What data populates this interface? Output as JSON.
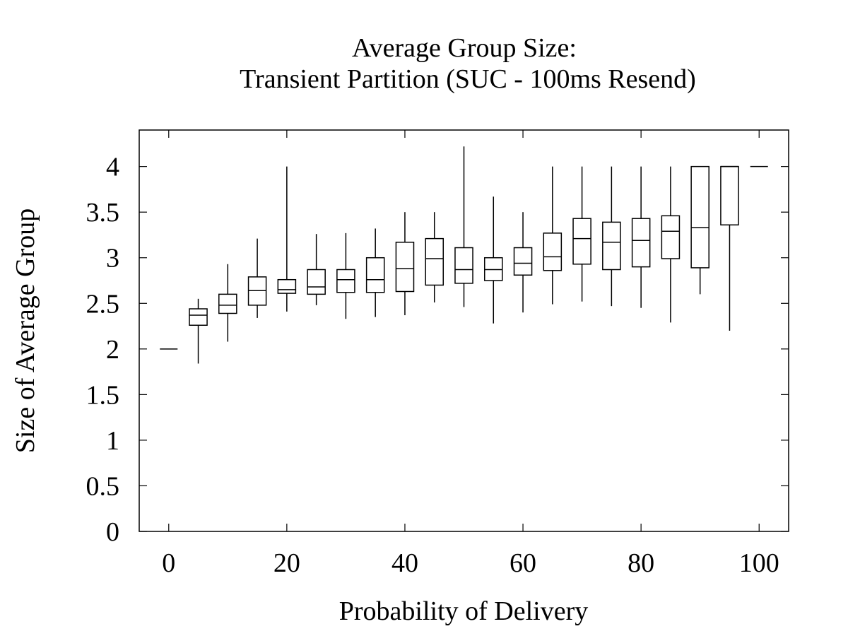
{
  "chart_data": {
    "type": "boxplot",
    "title": [
      "Average Group Size:",
      "Transient Partition (SUC - 100ms Resend)"
    ],
    "xlabel": "Probability of Delivery",
    "ylabel": "Size of Average Group",
    "xlim": [
      -5,
      105
    ],
    "ylim": [
      0,
      4.4
    ],
    "xticks": [
      0,
      20,
      40,
      60,
      80,
      100
    ],
    "xtick_labels": [
      "0",
      "20",
      "40",
      "60",
      "80",
      "100"
    ],
    "yticks": [
      0,
      0.5,
      1,
      1.5,
      2,
      2.5,
      3,
      3.5,
      4
    ],
    "ytick_labels": [
      "0",
      "0.5",
      "1",
      "1.5",
      "2",
      "2.5",
      "3",
      "3.5",
      "4"
    ],
    "grid": false,
    "box_width": 3,
    "boxes": [
      {
        "x": 0,
        "min": 2.0,
        "q1": 2.0,
        "median": 2.0,
        "q3": 2.0,
        "max": 2.0
      },
      {
        "x": 5,
        "min": 1.84,
        "q1": 2.26,
        "median": 2.37,
        "q3": 2.44,
        "max": 2.55
      },
      {
        "x": 10,
        "min": 2.08,
        "q1": 2.39,
        "median": 2.48,
        "q3": 2.6,
        "max": 2.93
      },
      {
        "x": 15,
        "min": 2.34,
        "q1": 2.48,
        "median": 2.64,
        "q3": 2.79,
        "max": 3.21
      },
      {
        "x": 20,
        "min": 2.41,
        "q1": 2.61,
        "median": 2.65,
        "q3": 2.76,
        "max": 4.0
      },
      {
        "x": 25,
        "min": 2.48,
        "q1": 2.6,
        "median": 2.68,
        "q3": 2.87,
        "max": 3.26
      },
      {
        "x": 30,
        "min": 2.33,
        "q1": 2.62,
        "median": 2.76,
        "q3": 2.87,
        "max": 3.27
      },
      {
        "x": 35,
        "min": 2.35,
        "q1": 2.62,
        "median": 2.76,
        "q3": 3.0,
        "max": 3.32
      },
      {
        "x": 40,
        "min": 2.37,
        "q1": 2.63,
        "median": 2.88,
        "q3": 3.17,
        "max": 3.5
      },
      {
        "x": 45,
        "min": 2.51,
        "q1": 2.7,
        "median": 2.99,
        "q3": 3.21,
        "max": 3.5
      },
      {
        "x": 50,
        "min": 2.46,
        "q1": 2.72,
        "median": 2.87,
        "q3": 3.11,
        "max": 4.22
      },
      {
        "x": 55,
        "min": 2.28,
        "q1": 2.75,
        "median": 2.87,
        "q3": 3.0,
        "max": 3.67
      },
      {
        "x": 60,
        "min": 2.4,
        "q1": 2.81,
        "median": 2.94,
        "q3": 3.11,
        "max": 3.5
      },
      {
        "x": 65,
        "min": 2.49,
        "q1": 2.86,
        "median": 3.01,
        "q3": 3.27,
        "max": 4.0
      },
      {
        "x": 70,
        "min": 2.52,
        "q1": 2.93,
        "median": 3.21,
        "q3": 3.43,
        "max": 4.0
      },
      {
        "x": 75,
        "min": 2.47,
        "q1": 2.87,
        "median": 3.17,
        "q3": 3.39,
        "max": 4.0
      },
      {
        "x": 80,
        "min": 2.45,
        "q1": 2.9,
        "median": 3.19,
        "q3": 3.43,
        "max": 4.0
      },
      {
        "x": 85,
        "min": 2.29,
        "q1": 2.99,
        "median": 3.29,
        "q3": 3.46,
        "max": 4.0
      },
      {
        "x": 90,
        "min": 2.6,
        "q1": 2.89,
        "median": 3.33,
        "q3": 4.0,
        "max": 4.0
      },
      {
        "x": 95,
        "min": 2.2,
        "q1": 3.36,
        "median": 4.0,
        "q3": 4.0,
        "max": 4.0
      },
      {
        "x": 100,
        "min": 4.0,
        "q1": 4.0,
        "median": 4.0,
        "q3": 4.0,
        "max": 4.0
      }
    ]
  }
}
